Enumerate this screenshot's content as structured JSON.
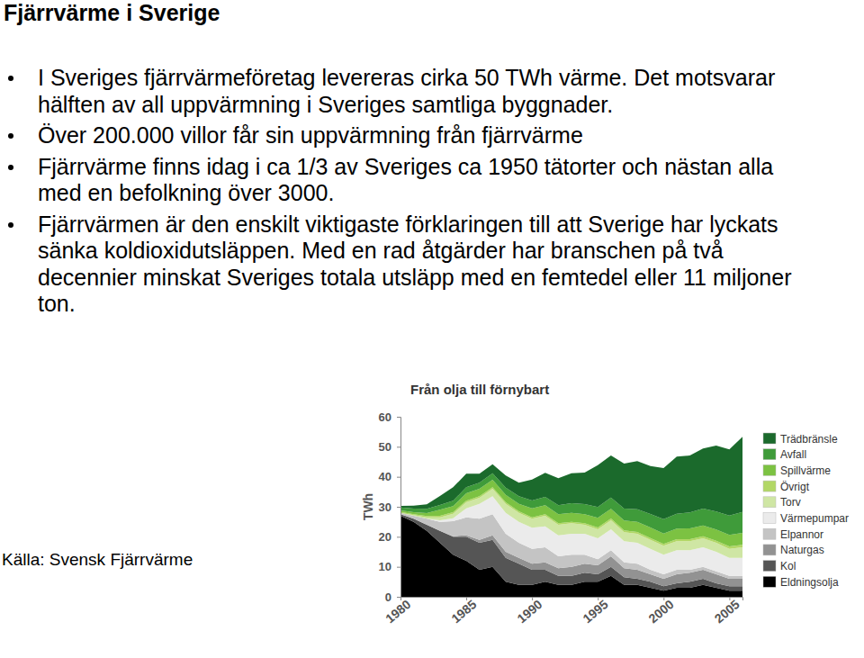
{
  "slide": {
    "title": "Fjärrvärme i Sverige",
    "bullets": [
      "I Sveriges fjärrvärmeföretag levereras cirka 50 TWh värme. Det motsvarar hälften av all uppvärmning i Sveriges samtliga byggnader.",
      "Över 200.000 villor får sin uppvärmning från fjärrvärme",
      "Fjärrvärme finns idag i ca 1/3 av Sveriges ca 1950 tätorter och nästan alla med en befolkning över 3000.",
      "Fjärrvärmen är den enskilt viktigaste förklaringen till att Sverige har lyckats sänka koldioxidutsläppen. Med en rad åtgärder har branschen på två decennier minskat Sveriges totala utsläpp med en femtedel eller 11 miljoner ton."
    ],
    "source": "Källa: Svensk Fjärrvärme"
  },
  "chart_data": {
    "type": "area",
    "stacked": true,
    "title": "Från olja till förnybart",
    "ylabel": "TWh",
    "legend": "right",
    "x": [
      1980,
      1981,
      1982,
      1983,
      1984,
      1985,
      1986,
      1987,
      1988,
      1989,
      1990,
      1991,
      1992,
      1993,
      1994,
      1995,
      1996,
      1997,
      1998,
      1999,
      2000,
      2001,
      2002,
      2003,
      2004,
      2005,
      2006
    ],
    "xlim": [
      1980,
      2006
    ],
    "xticks": [
      1980,
      1985,
      1990,
      1995,
      2000,
      2005
    ],
    "ylim": [
      0,
      60
    ],
    "yticks": [
      0,
      10,
      20,
      30,
      40,
      50,
      60
    ],
    "series": [
      {
        "name": "Eldningsolja",
        "color": "#000000",
        "values": [
          27,
          25,
          22,
          18,
          14,
          12,
          9,
          10,
          5,
          4,
          4,
          5,
          4,
          4,
          5,
          5,
          7,
          4,
          4,
          3,
          2,
          3,
          3,
          4,
          3,
          2,
          2
        ]
      },
      {
        "name": "Kol",
        "color": "#555555",
        "values": [
          0.5,
          1,
          2,
          4,
          6,
          8,
          9,
          9,
          8,
          7,
          5,
          4,
          3,
          3,
          3,
          2.5,
          3,
          2.5,
          2,
          2,
          1.5,
          1.5,
          2,
          2,
          1.5,
          1.5,
          1.5
        ]
      },
      {
        "name": "Naturgas",
        "color": "#929292",
        "values": [
          0,
          0,
          0,
          0,
          0.2,
          0.5,
          1,
          1.5,
          2,
          2,
          2,
          2.5,
          2.5,
          3,
          3,
          3,
          3.5,
          3,
          3,
          2.5,
          2.5,
          3,
          3,
          3,
          3,
          2.5,
          2.5
        ]
      },
      {
        "name": "Elpannor",
        "color": "#c4c4c4",
        "values": [
          0.5,
          1,
          2,
          3,
          5,
          6,
          7,
          7,
          6,
          5,
          5,
          5,
          4,
          4,
          3,
          2,
          2,
          2,
          2,
          1.5,
          1.5,
          1.5,
          1,
          1,
          1,
          1,
          1
        ]
      },
      {
        "name": "Värmepumpar",
        "color": "#ebebeb",
        "values": [
          0,
          0,
          0,
          0.5,
          1,
          3,
          5,
          6,
          7,
          7,
          7,
          7,
          7,
          7,
          7,
          7,
          7,
          7,
          7,
          7,
          6.5,
          6.5,
          6.5,
          6.5,
          6.5,
          6,
          6
        ]
      },
      {
        "name": "Torv",
        "color": "#cfe6a4",
        "values": [
          0,
          0.2,
          0.5,
          1,
          1.5,
          2,
          2,
          2.5,
          3,
          3,
          3,
          3.5,
          3.5,
          3.5,
          3,
          3,
          3,
          3,
          3,
          3,
          3,
          3,
          3,
          3,
          3,
          3,
          3.5
        ]
      },
      {
        "name": "Övrigt",
        "color": "#b2d766",
        "values": [
          0.3,
          0.3,
          0.4,
          0.5,
          0.5,
          0.5,
          0.5,
          0.5,
          0.5,
          0.5,
          0.5,
          0.5,
          0.5,
          0.5,
          0.5,
          0.6,
          0.6,
          0.6,
          0.6,
          0.6,
          0.6,
          0.7,
          0.7,
          0.7,
          0.7,
          0.8,
          0.8
        ]
      },
      {
        "name": "Spillvärme",
        "color": "#7cc242",
        "values": [
          0.5,
          0.7,
          1,
          2,
          2,
          2.5,
          2.5,
          2.5,
          2.5,
          2.5,
          3,
          3,
          3,
          3,
          3,
          3.2,
          3.2,
          3.3,
          3.4,
          3.5,
          3.5,
          3.5,
          3.6,
          3.6,
          3.7,
          3.8,
          4
        ]
      },
      {
        "name": "Avfall",
        "color": "#3f9b3a",
        "values": [
          1,
          1.2,
          1.4,
          1.6,
          1.8,
          2,
          2,
          2.2,
          2.4,
          2.5,
          2.6,
          2.8,
          3,
          3.2,
          3.4,
          3.6,
          3.8,
          4,
          4.2,
          4.5,
          4.8,
          5,
          5.3,
          5.6,
          6,
          6.5,
          7
        ]
      },
      {
        "name": "Trädbränsle",
        "color": "#1b6a2c",
        "values": [
          0.5,
          1,
          1.5,
          3,
          4.5,
          4.5,
          3,
          3,
          4,
          4.5,
          7,
          8,
          9,
          10,
          10.5,
          14,
          14,
          15,
          16,
          16,
          17,
          19,
          19,
          20,
          22,
          22,
          25
        ]
      }
    ]
  }
}
